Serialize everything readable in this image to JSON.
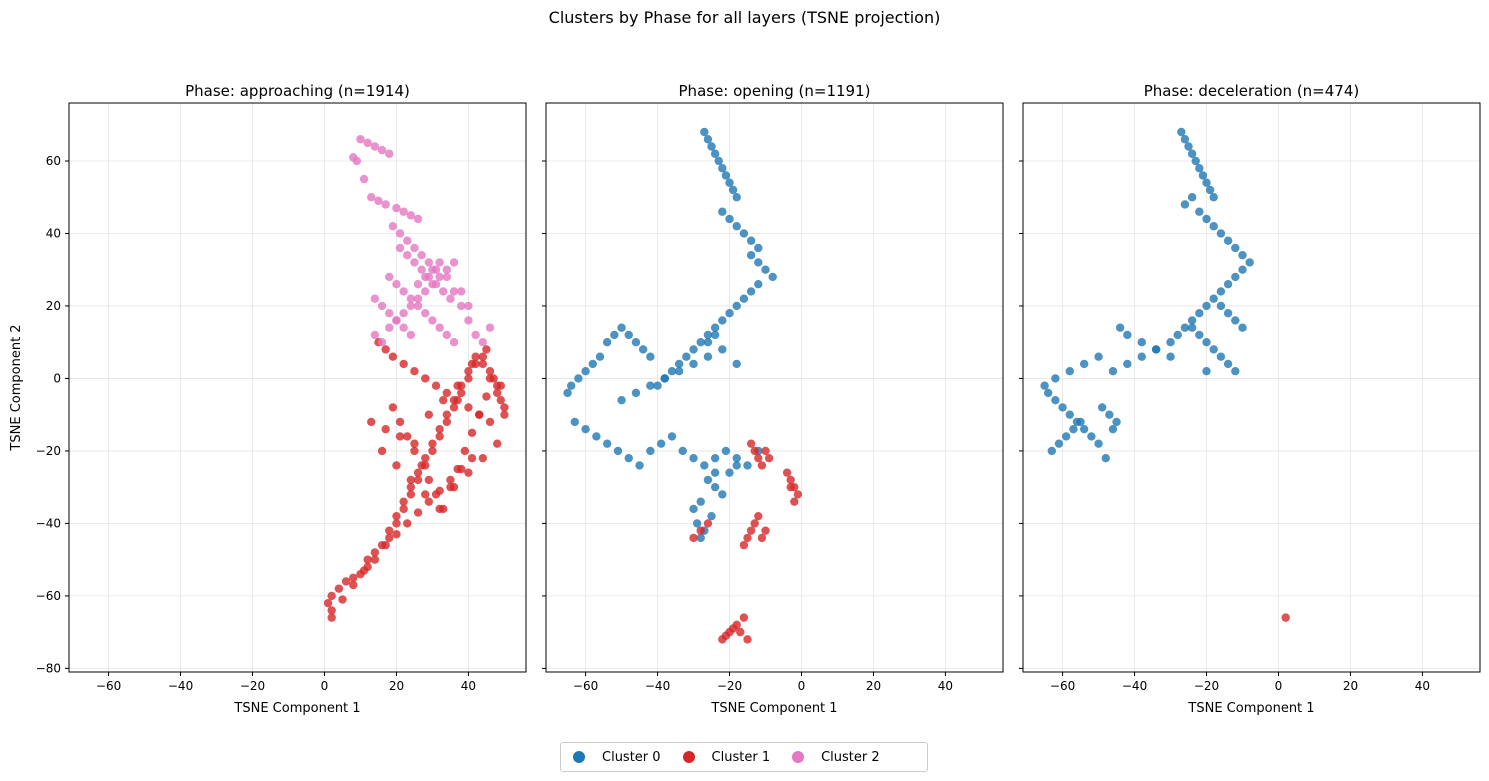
{
  "suptitle": "Clusters by Phase for all layers (TSNE projection)",
  "legend": [
    {
      "label": "Cluster 0",
      "color": "#1f77b4"
    },
    {
      "label": "Cluster 1",
      "color": "#d62728"
    },
    {
      "label": "Cluster 2",
      "color": "#e377c2"
    }
  ],
  "chart_data": [
    {
      "type": "scatter",
      "title": "Phase: approaching (n=1914)",
      "xlabel": "TSNE Component 1",
      "ylabel": "TSNE Component 2",
      "xlim": [
        -71,
        56
      ],
      "ylim": [
        -81,
        76
      ],
      "xticks": [
        -60,
        -40,
        -20,
        0,
        20,
        40
      ],
      "yticks": [
        -80,
        -60,
        -40,
        -20,
        0,
        20,
        40,
        60
      ],
      "grid": true,
      "series": [
        {
          "name": "Cluster 1",
          "color": "#d62728",
          "x": [
            1,
            2,
            4,
            6,
            8,
            10,
            12,
            12,
            14,
            16,
            18,
            18,
            20,
            20,
            22,
            22,
            24,
            24,
            26,
            26,
            28,
            28,
            30,
            30,
            32,
            32,
            34,
            34,
            36,
            36,
            38,
            38,
            40,
            40,
            42,
            42,
            44,
            44,
            46,
            46,
            48,
            48,
            49,
            50,
            50,
            19,
            21,
            23,
            25,
            27,
            29,
            31,
            33,
            35,
            37,
            39,
            41,
            43,
            45,
            47,
            15,
            17,
            19,
            22,
            25,
            28,
            31,
            34,
            37,
            40,
            43,
            46,
            16,
            20,
            24,
            28,
            32,
            36,
            40,
            44,
            48,
            2,
            5,
            8,
            11,
            14,
            17,
            20,
            23,
            26,
            29,
            32,
            35,
            38,
            41,
            13,
            17,
            21,
            25,
            29,
            33,
            37,
            41,
            45,
            49,
            2
          ],
          "y": [
            -62,
            -60,
            -58,
            -56,
            -55,
            -54,
            -52,
            -50,
            -48,
            -46,
            -44,
            -42,
            -40,
            -38,
            -36,
            -34,
            -32,
            -30,
            -28,
            -26,
            -24,
            -22,
            -20,
            -18,
            -16,
            -14,
            -12,
            -10,
            -8,
            -6,
            -4,
            -2,
            0,
            2,
            4,
            6,
            6,
            4,
            2,
            0,
            -2,
            -4,
            -6,
            -8,
            -10,
            -8,
            -12,
            -16,
            -20,
            -24,
            -28,
            -32,
            -36,
            -30,
            -25,
            -20,
            -15,
            -10,
            -5,
            0,
            10,
            8,
            6,
            4,
            2,
            0,
            -2,
            -4,
            -6,
            -8,
            -10,
            -12,
            -20,
            -24,
            -28,
            -32,
            -36,
            -30,
            -26,
            -22,
            -18,
            -64,
            -61,
            -57,
            -53,
            -50,
            -46,
            -43,
            -40,
            -37,
            -34,
            -31,
            -28,
            -25,
            -22,
            -12,
            -14,
            -16,
            -18,
            -10,
            -6,
            -2,
            4,
            8,
            -2,
            -66
          ]
        },
        {
          "name": "Cluster 2",
          "color": "#e377c2",
          "x": [
            10,
            12,
            14,
            16,
            18,
            8,
            9,
            11,
            13,
            15,
            17,
            20,
            22,
            24,
            26,
            19,
            21,
            23,
            25,
            27,
            29,
            31,
            18,
            20,
            22,
            24,
            26,
            28,
            30,
            32,
            34,
            36,
            14,
            16,
            18,
            20,
            22,
            24,
            26,
            28,
            30,
            32,
            34,
            36,
            38,
            40,
            42,
            44,
            46,
            14,
            16,
            18,
            20,
            22,
            24,
            26,
            28,
            30,
            32,
            34,
            36,
            38,
            40,
            21,
            23,
            25,
            27,
            29,
            31,
            33,
            35
          ],
          "y": [
            66,
            65,
            64,
            63,
            62,
            61,
            60,
            55,
            50,
            49,
            48,
            47,
            46,
            45,
            44,
            42,
            40,
            38,
            36,
            34,
            32,
            30,
            28,
            26,
            24,
            22,
            20,
            18,
            16,
            14,
            12,
            10,
            22,
            20,
            18,
            16,
            14,
            12,
            26,
            28,
            30,
            32,
            28,
            24,
            20,
            16,
            12,
            10,
            14,
            12,
            10,
            14,
            16,
            18,
            20,
            22,
            24,
            26,
            28,
            30,
            32,
            24,
            20,
            36,
            34,
            32,
            30,
            28,
            26,
            24,
            22
          ]
        }
      ]
    },
    {
      "type": "scatter",
      "title": "Phase: opening (n=1191)",
      "xlabel": "TSNE Component 1",
      "ylabel": "",
      "xlim": [
        -71,
        56
      ],
      "ylim": [
        -81,
        76
      ],
      "xticks": [
        -60,
        -40,
        -20,
        0,
        20,
        40
      ],
      "yticks": [
        -80,
        -60,
        -40,
        -20,
        0,
        20,
        40,
        60
      ],
      "grid": true,
      "series": [
        {
          "name": "Cluster 0",
          "color": "#1f77b4",
          "x": [
            -27,
            -26,
            -25,
            -24,
            -23,
            -22,
            -21,
            -20,
            -19,
            -18,
            -22,
            -20,
            -18,
            -16,
            -14,
            -12,
            -14,
            -12,
            -10,
            -8,
            -12,
            -14,
            -16,
            -18,
            -20,
            -22,
            -24,
            -26,
            -28,
            -30,
            -32,
            -34,
            -36,
            -38,
            -40,
            -42,
            -44,
            -46,
            -48,
            -50,
            -52,
            -54,
            -56,
            -58,
            -60,
            -62,
            -64,
            -65,
            -63,
            -60,
            -57,
            -54,
            -51,
            -48,
            -45,
            -42,
            -39,
            -36,
            -33,
            -30,
            -27,
            -24,
            -21,
            -18,
            -15,
            -12,
            -24,
            -22,
            -20,
            -18,
            -50,
            -46,
            -42,
            -38,
            -34,
            -30,
            -26,
            -22,
            -18,
            -26,
            -24,
            -28,
            -30,
            -29,
            -27,
            -25,
            -28,
            -26,
            -24
          ],
          "y": [
            68,
            66,
            64,
            62,
            60,
            58,
            56,
            54,
            52,
            50,
            46,
            44,
            42,
            40,
            38,
            36,
            34,
            32,
            30,
            28,
            26,
            24,
            22,
            20,
            18,
            16,
            14,
            12,
            10,
            8,
            6,
            4,
            2,
            0,
            -2,
            6,
            8,
            10,
            12,
            14,
            12,
            10,
            6,
            4,
            2,
            0,
            -2,
            -4,
            -12,
            -14,
            -16,
            -18,
            -20,
            -22,
            -24,
            -20,
            -18,
            -16,
            -20,
            -22,
            -24,
            -22,
            -20,
            -22,
            -24,
            -20,
            -30,
            -32,
            -26,
            -24,
            -6,
            -4,
            -2,
            0,
            2,
            4,
            6,
            8,
            4,
            10,
            12,
            -34,
            -36,
            -40,
            -42,
            -38,
            -44,
            -28,
            -26
          ]
        },
        {
          "name": "Cluster 1",
          "color": "#d62728",
          "x": [
            -14,
            -13,
            -12,
            -11,
            -10,
            -9,
            -16,
            -15,
            -14,
            -13,
            -12,
            -11,
            -10,
            -4,
            -3,
            -2,
            -1,
            -2,
            -3,
            -22,
            -21,
            -20,
            -19,
            -18,
            -17,
            -16,
            -15,
            -30,
            -28,
            -26
          ],
          "y": [
            -18,
            -20,
            -22,
            -24,
            -20,
            -22,
            -46,
            -44,
            -42,
            -40,
            -38,
            -44,
            -42,
            -26,
            -28,
            -30,
            -32,
            -34,
            -30,
            -72,
            -71,
            -70,
            -69,
            -68,
            -70,
            -66,
            -72,
            -44,
            -42,
            -40
          ]
        }
      ]
    },
    {
      "type": "scatter",
      "title": "Phase: deceleration (n=474)",
      "xlabel": "TSNE Component 1",
      "ylabel": "",
      "xlim": [
        -71,
        56
      ],
      "ylim": [
        -81,
        76
      ],
      "xticks": [
        -60,
        -40,
        -20,
        0,
        20,
        40
      ],
      "yticks": [
        -80,
        -60,
        -40,
        -20,
        0,
        20,
        40,
        60
      ],
      "grid": true,
      "series": [
        {
          "name": "Cluster 0",
          "color": "#1f77b4",
          "x": [
            -27,
            -26,
            -25,
            -24,
            -23,
            -22,
            -21,
            -20,
            -19,
            -18,
            -26,
            -24,
            -22,
            -20,
            -18,
            -16,
            -14,
            -12,
            -10,
            -8,
            -10,
            -12,
            -14,
            -16,
            -18,
            -20,
            -22,
            -24,
            -26,
            -28,
            -30,
            -34,
            -38,
            -42,
            -46,
            -50,
            -54,
            -58,
            -62,
            -65,
            -64,
            -62,
            -60,
            -58,
            -56,
            -54,
            -52,
            -50,
            -48,
            -46,
            -45,
            -47,
            -49,
            -55,
            -57,
            -59,
            -61,
            -63,
            -20,
            -18,
            -16,
            -14,
            -12,
            -24,
            -22,
            -20,
            -16,
            -14,
            -12,
            -10,
            -30,
            -34,
            -38,
            -42,
            -44
          ],
          "y": [
            68,
            66,
            64,
            62,
            60,
            58,
            56,
            54,
            52,
            50,
            48,
            50,
            46,
            44,
            42,
            40,
            38,
            36,
            34,
            32,
            30,
            28,
            26,
            24,
            22,
            20,
            18,
            16,
            14,
            12,
            10,
            8,
            6,
            4,
            2,
            6,
            4,
            2,
            0,
            -2,
            -4,
            -6,
            -8,
            -10,
            -12,
            -14,
            -16,
            -18,
            -22,
            -14,
            -12,
            -10,
            -8,
            -12,
            -14,
            -16,
            -18,
            -20,
            10,
            8,
            6,
            4,
            2,
            14,
            12,
            2,
            20,
            18,
            16,
            14,
            6,
            8,
            10,
            12,
            14
          ]
        },
        {
          "name": "Cluster 1",
          "color": "#d62728",
          "x": [
            2
          ],
          "y": [
            -66
          ]
        }
      ]
    }
  ]
}
